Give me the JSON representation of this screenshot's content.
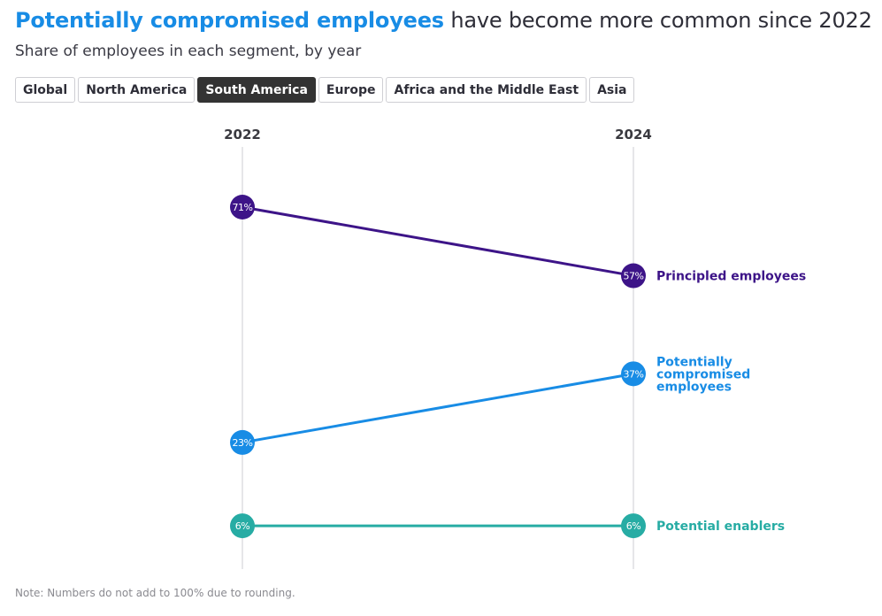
{
  "header": {
    "title_highlight": "Potentially compromised employees",
    "title_rest": " have become more common since 2022",
    "subtitle": "Share of employees in each segment, by year"
  },
  "tabs": [
    {
      "label": "Global",
      "active": false
    },
    {
      "label": "North America",
      "active": false
    },
    {
      "label": "South America",
      "active": true
    },
    {
      "label": "Europe",
      "active": false
    },
    {
      "label": "Africa and the Middle East",
      "active": false
    },
    {
      "label": "Asia",
      "active": false
    }
  ],
  "note": "Note: Numbers do not add to 100% due to rounding.",
  "chart_data": {
    "type": "line",
    "subtype": "slope",
    "title": "Potentially compromised employees have become more common since 2022",
    "subtitle": "Share of employees in each segment, by year",
    "region": "South America",
    "x": [
      "2022",
      "2024"
    ],
    "unit": "%",
    "series": [
      {
        "name": "Principled employees",
        "label_lines": [
          "Principled employees"
        ],
        "values": [
          71,
          57
        ],
        "color": "#3d1488"
      },
      {
        "name": "Potentially compromised employees",
        "label_lines": [
          "Potentially",
          "compromised",
          "employees"
        ],
        "values": [
          23,
          37
        ],
        "color": "#188ce5"
      },
      {
        "name": "Potential enablers",
        "label_lines": [
          "Potential enablers"
        ],
        "values": [
          6,
          6
        ],
        "color": "#27aca4"
      }
    ],
    "grid": false,
    "legend": "direct-labels-right"
  }
}
